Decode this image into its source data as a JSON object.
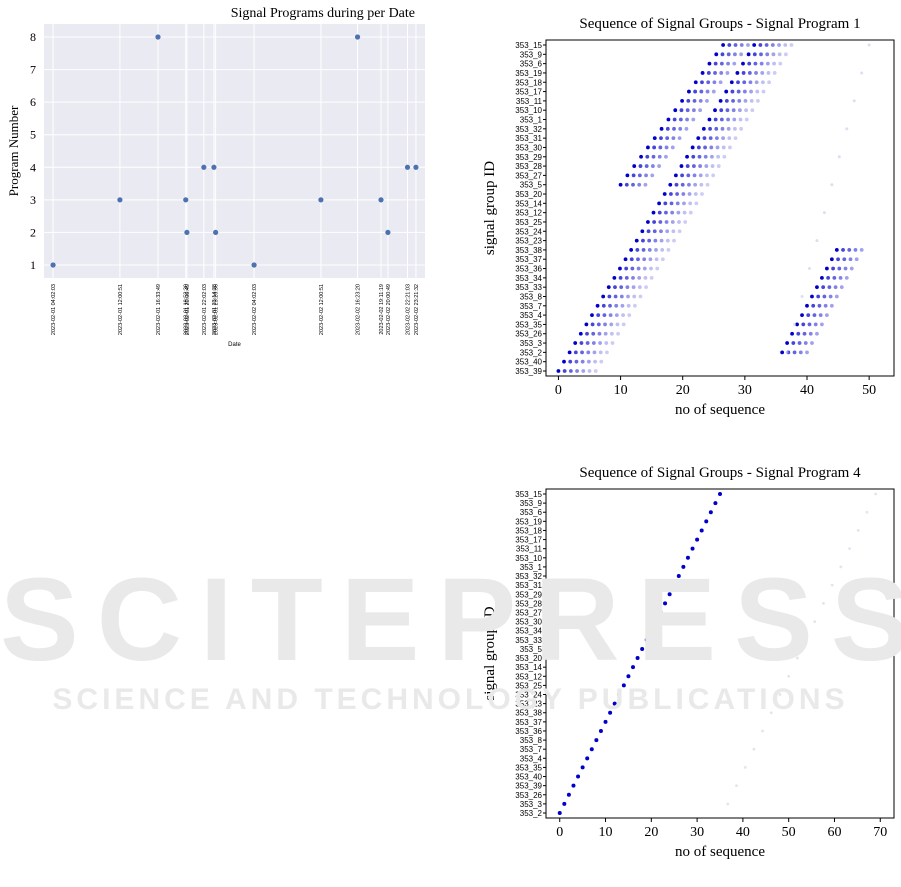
{
  "watermark": {
    "line1": "SCITEPRESS",
    "line2": "SCIENCE AND TECHNOLOGY PUBLICATIONS"
  },
  "chart_data": [
    {
      "type": "scatter",
      "title": "Signal Programs during per Date",
      "xlabel": "Date",
      "ylabel": "Program Number",
      "ylim": [
        0.6,
        8.4
      ],
      "grid": true,
      "background": "#eaeaf2",
      "point_color": "#4c72b0",
      "yticks": [
        1,
        2,
        3,
        4,
        5,
        6,
        7,
        8
      ],
      "x_ticklabels": [
        "2023-02-01 04:02:03",
        "2023-02-01 12:00:51",
        "2023-02-01 16:33:49",
        "2023-02-01 19:52:30",
        "2023-02-01 20:00:49",
        "2023-02-01 22:02:03",
        "2023-02-01 23:14:28",
        "2023-02-01 23:26:36",
        "2023-02-02 04:02:03",
        "2023-02-02 12:00:51",
        "2023-02-02 16:23:20",
        "2023-02-02 19:11:19",
        "2023-02-02 20:00:49",
        "2023-02-02 22:21:03",
        "2023-02-02 23:21:32"
      ],
      "points": [
        {
          "x": "2023-02-01 04:02:03",
          "y": 1
        },
        {
          "x": "2023-02-01 12:00:51",
          "y": 3
        },
        {
          "x": "2023-02-01 16:33:49",
          "y": 8
        },
        {
          "x": "2023-02-01 19:52:30",
          "y": 3
        },
        {
          "x": "2023-02-01 20:00:49",
          "y": 2
        },
        {
          "x": "2023-02-01 22:02:03",
          "y": 4
        },
        {
          "x": "2023-02-01 23:14:28",
          "y": 4
        },
        {
          "x": "2023-02-01 23:26:36",
          "y": 2
        },
        {
          "x": "2023-02-02 04:02:03",
          "y": 1
        },
        {
          "x": "2023-02-02 12:00:51",
          "y": 3
        },
        {
          "x": "2023-02-02 16:23:20",
          "y": 8
        },
        {
          "x": "2023-02-02 19:11:19",
          "y": 3
        },
        {
          "x": "2023-02-02 20:00:49",
          "y": 2
        },
        {
          "x": "2023-02-02 22:21:03",
          "y": 4
        },
        {
          "x": "2023-02-02 23:21:32",
          "y": 4
        }
      ]
    },
    {
      "type": "scatter",
      "title": "Sequence of Signal Groups - Signal Program 1",
      "xlabel": "no of sequence",
      "ylabel": "signal group ID",
      "xlim": [
        -2,
        54
      ],
      "xticks": [
        0,
        10,
        20,
        30,
        40,
        50
      ],
      "grid": false,
      "point_color": "#0000cc",
      "categories": [
        "353_15",
        "353_9",
        "353_6",
        "353_19",
        "353_18",
        "353_17",
        "353_11",
        "353_10",
        "353_1",
        "353_32",
        "353_31",
        "353_30",
        "353_29",
        "353_28",
        "353_27",
        "353_5",
        "353_20",
        "353_14",
        "353_12",
        "353_25",
        "353_24",
        "353_23",
        "353_38",
        "353_37",
        "353_36",
        "353_34",
        "353_33",
        "353_8",
        "353_7",
        "353_4",
        "353_35",
        "353_26",
        "353_3",
        "353_2",
        "353_40",
        "353_39"
      ],
      "bands": [
        {
          "start_x": 0,
          "slope": 0.9,
          "width": 7,
          "from_index": 35,
          "to_index": 0
        },
        {
          "start_x": 10,
          "slope": 1.1,
          "width": 5,
          "from_index": 15,
          "to_index": 0
        },
        {
          "start_x": 36,
          "slope": 0.8,
          "width": 5,
          "from_index": 33,
          "to_index": 22
        }
      ]
    },
    {
      "type": "scatter",
      "title": "Sequence of Signal Groups - Signal Program 4",
      "xlabel": "no of sequence",
      "ylabel": "signal group ID",
      "xlim": [
        -3,
        73
      ],
      "xticks": [
        0,
        10,
        20,
        30,
        40,
        50,
        60,
        70
      ],
      "grid": false,
      "point_color": "#0000cc",
      "categories": [
        "353_15",
        "353_9",
        "353_6",
        "353_19",
        "353_18",
        "353_17",
        "353_11",
        "353_10",
        "353_1",
        "353_32",
        "353_31",
        "353_29",
        "353_28",
        "353_27",
        "353_30",
        "353_34",
        "353_33",
        "353_5",
        "353_20",
        "353_14",
        "353_12",
        "353_25",
        "353_24",
        "353_23",
        "353_38",
        "353_37",
        "353_36",
        "353_8",
        "353_7",
        "353_4",
        "353_35",
        "353_40",
        "353_39",
        "353_26",
        "353_3",
        "353_2"
      ],
      "diagonal": {
        "start_x": 0,
        "end_x": 35
      }
    }
  ]
}
